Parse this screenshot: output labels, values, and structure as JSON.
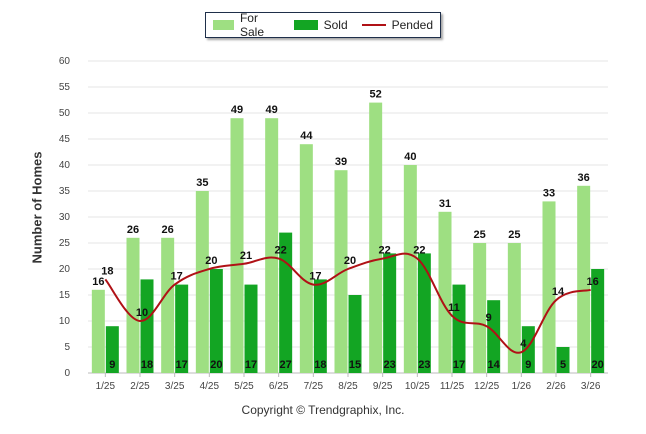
{
  "chart_data": {
    "type": "bar",
    "title": "",
    "xlabel": "",
    "ylabel": "Number of Homes",
    "ylim": [
      0,
      60
    ],
    "yticks": [
      0,
      5,
      10,
      15,
      20,
      25,
      30,
      35,
      40,
      45,
      50,
      55,
      60
    ],
    "categories": [
      "1/25",
      "2/25",
      "3/25",
      "4/25",
      "5/25",
      "6/25",
      "7/25",
      "8/25",
      "9/25",
      "10/25",
      "11/25",
      "12/25",
      "1/26",
      "2/26",
      "3/26"
    ],
    "series": [
      {
        "name": "For Sale",
        "type": "bar",
        "color": "#9edf82",
        "values": [
          16,
          26,
          26,
          35,
          49,
          49,
          44,
          39,
          52,
          40,
          31,
          25,
          25,
          33,
          36
        ]
      },
      {
        "name": "Sold",
        "type": "bar",
        "color": "#13a523",
        "values": [
          9,
          18,
          17,
          20,
          17,
          27,
          18,
          15,
          23,
          23,
          17,
          14,
          9,
          5,
          20
        ]
      },
      {
        "name": "Pended",
        "type": "line",
        "color": "#b01116",
        "values": [
          18,
          10,
          17,
          20,
          21,
          22,
          17,
          20,
          22,
          22,
          11,
          9,
          4,
          14,
          16
        ]
      }
    ],
    "legend_position": "top-center",
    "grid": true
  },
  "footer": {
    "copyright": "Copyright © Trendgraphix, Inc."
  }
}
